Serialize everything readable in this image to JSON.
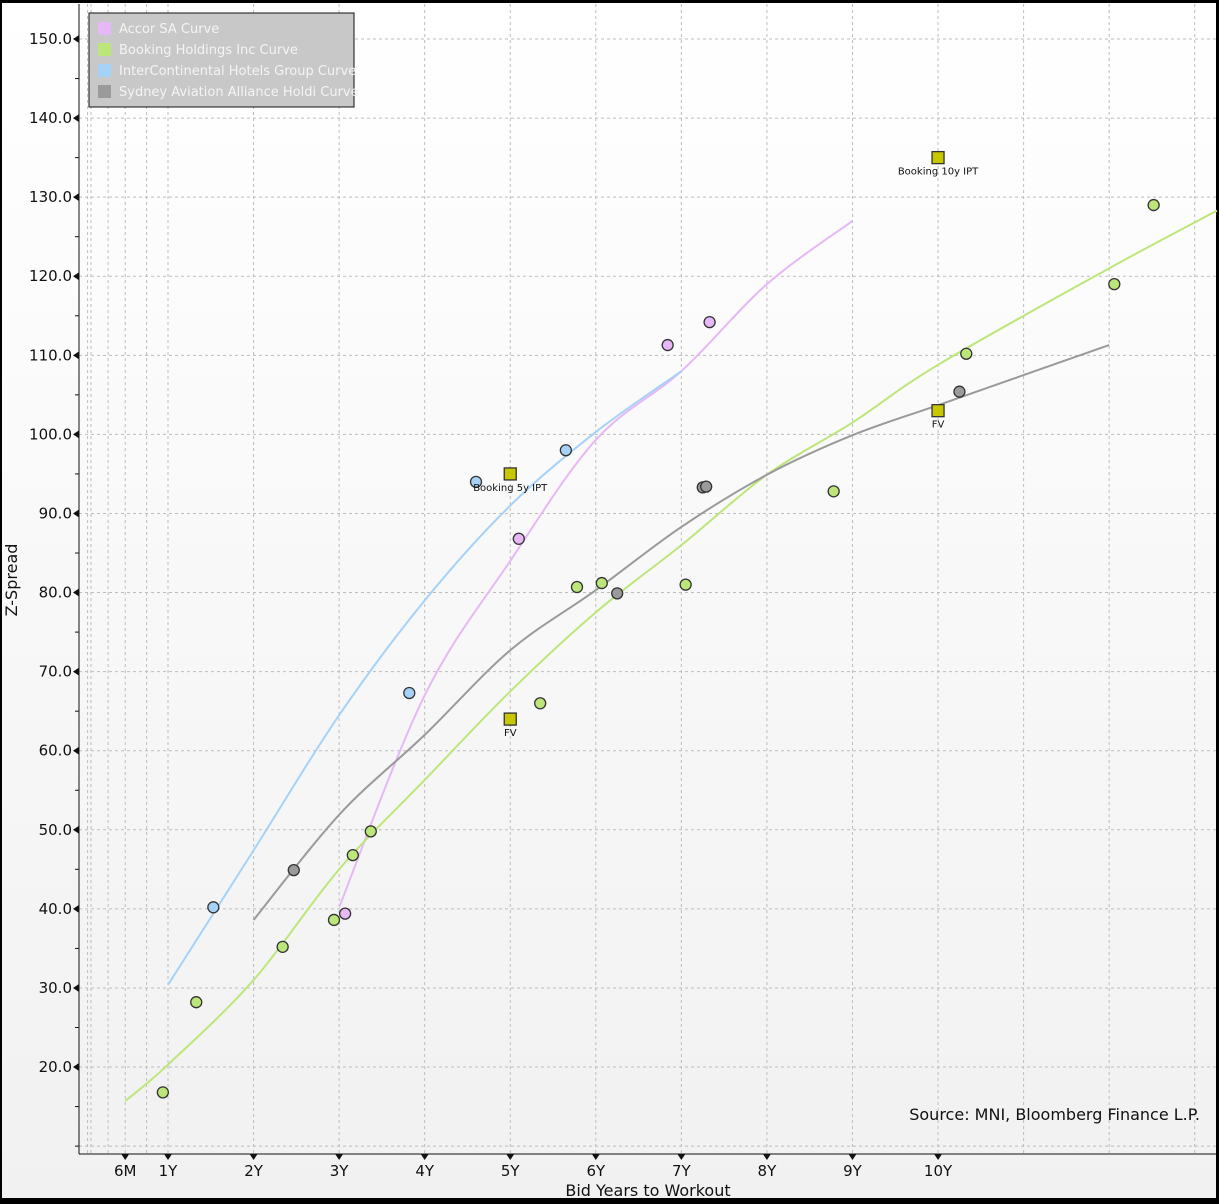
{
  "chart_data": {
    "type": "scatter",
    "title": "",
    "xlabel": "Bid Years to Workout",
    "ylabel": "Z-Spread",
    "xlim": [
      -0.03,
      13.24
    ],
    "ylim": [
      9.2,
      154.3
    ],
    "grid": true,
    "legend_position": "top-left",
    "source": "Source: MNI, Bloomberg Finance L.P.",
    "x_ticks": [
      {
        "v": 0.5,
        "label": "6M"
      },
      {
        "v": 1,
        "label": "1Y"
      },
      {
        "v": 2,
        "label": "2Y"
      },
      {
        "v": 3,
        "label": "3Y"
      },
      {
        "v": 4,
        "label": "4Y"
      },
      {
        "v": 5,
        "label": "5Y"
      },
      {
        "v": 6,
        "label": "6Y"
      },
      {
        "v": 7,
        "label": "7Y"
      },
      {
        "v": 8,
        "label": "8Y"
      },
      {
        "v": 9,
        "label": "9Y"
      },
      {
        "v": 10,
        "label": "10Y"
      }
    ],
    "y_ticks": [
      {
        "v": 20,
        "label": "20.0"
      },
      {
        "v": 30,
        "label": "30.0"
      },
      {
        "v": 40,
        "label": "40.0"
      },
      {
        "v": 50,
        "label": "50.0"
      },
      {
        "v": 60,
        "label": "60.0"
      },
      {
        "v": 70,
        "label": "70.0"
      },
      {
        "v": 80,
        "label": "80.0"
      },
      {
        "v": 90,
        "label": "90.0"
      },
      {
        "v": 100,
        "label": "100.0"
      },
      {
        "v": 110,
        "label": "110.0"
      },
      {
        "v": 120,
        "label": "120.0"
      },
      {
        "v": 130,
        "label": "130.0"
      },
      {
        "v": 140,
        "label": "140.0"
      },
      {
        "v": 150,
        "label": "150.0"
      }
    ],
    "series": [
      {
        "name": "Accor SA Curve",
        "color": "#e6b8f5",
        "curve": [
          [
            3,
            40.2
          ],
          [
            4,
            67
          ],
          [
            5,
            84
          ],
          [
            6,
            99.3
          ],
          [
            7,
            108
          ],
          [
            8,
            119
          ],
          [
            9,
            127
          ]
        ],
        "points": [
          [
            3.07,
            39.4
          ],
          [
            5.1,
            86.8
          ],
          [
            6.84,
            111.3
          ],
          [
            7.33,
            114.2
          ]
        ]
      },
      {
        "name": "Booking Holdings Inc Curve",
        "color": "#bde67a",
        "curve": [
          [
            0.5,
            15.7
          ],
          [
            1,
            20.3
          ],
          [
            2,
            31
          ],
          [
            3,
            45
          ],
          [
            4,
            56.3
          ],
          [
            5,
            67.5
          ],
          [
            6,
            77.5
          ],
          [
            7,
            86
          ],
          [
            8,
            94.9
          ],
          [
            9,
            101.5
          ],
          [
            10,
            108.8
          ],
          [
            12,
            121
          ],
          [
            13.26,
            128.3
          ]
        ],
        "points": [
          [
            0.94,
            16.8
          ],
          [
            1.33,
            28.2
          ],
          [
            2.34,
            35.2
          ],
          [
            2.94,
            38.6
          ],
          [
            3.16,
            46.8
          ],
          [
            3.37,
            49.8
          ],
          [
            5.35,
            66.0
          ],
          [
            5.78,
            80.7
          ],
          [
            6.07,
            81.2
          ],
          [
            7.05,
            81.0
          ],
          [
            8.78,
            92.8
          ],
          [
            10.33,
            110.2
          ],
          [
            12.06,
            119.0
          ],
          [
            12.52,
            129.0
          ]
        ]
      },
      {
        "name": "InterContinental Hotels Group Curve",
        "color": "#a6d2f7",
        "curve": [
          [
            1,
            30.4
          ],
          [
            2,
            47.4
          ],
          [
            3,
            64.5
          ],
          [
            4,
            79
          ],
          [
            5,
            91
          ],
          [
            6,
            100.3
          ],
          [
            7,
            108
          ]
        ],
        "points": [
          [
            1.53,
            40.2
          ],
          [
            3.82,
            67.3
          ],
          [
            4.6,
            94.0
          ],
          [
            5.65,
            98.0
          ]
        ]
      },
      {
        "name": "Sydney Aviation Alliance Holdi Curve",
        "color": "#9a9a9a",
        "curve": [
          [
            2,
            38.6
          ],
          [
            3,
            51.9
          ],
          [
            4,
            62
          ],
          [
            5,
            72.7
          ],
          [
            6,
            80.3
          ],
          [
            7,
            88.3
          ],
          [
            8,
            94.9
          ],
          [
            9,
            99.9
          ],
          [
            10,
            103.7
          ],
          [
            11,
            107.5
          ],
          [
            12,
            111.3
          ]
        ],
        "points": [
          [
            2.47,
            44.9
          ],
          [
            6.25,
            79.9
          ],
          [
            7.25,
            93.3
          ],
          [
            7.29,
            93.4
          ],
          [
            10.25,
            105.4
          ]
        ]
      }
    ],
    "markers": [
      {
        "x": 5,
        "y": 95,
        "label": "Booking 5y IPT",
        "color": "#c8c800"
      },
      {
        "x": 5,
        "y": 64,
        "label": "FV",
        "color": "#c8c800"
      },
      {
        "x": 10,
        "y": 135,
        "label": "Booking 10y IPT",
        "color": "#c8c800"
      },
      {
        "x": 10,
        "y": 103,
        "label": "FV",
        "color": "#c8c800"
      }
    ]
  }
}
